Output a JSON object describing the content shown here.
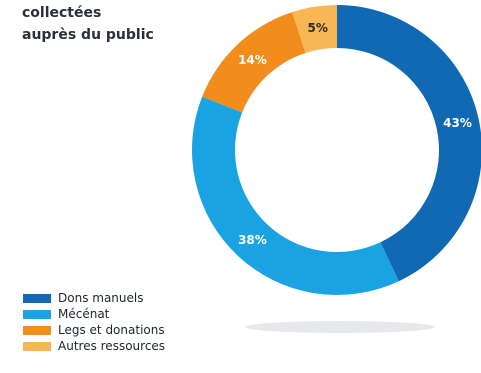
{
  "header": {
    "title_lines": [
      "collectées",
      "auprès du public"
    ]
  },
  "chart_data": {
    "type": "pie",
    "title": "",
    "categories": [
      "Dons manuels",
      "Mécénat",
      "Legs et donations",
      "Autres ressources"
    ],
    "values": [
      43,
      38,
      14,
      5
    ],
    "labels": [
      "43%",
      "38%",
      "14%",
      "5%"
    ],
    "colors": [
      "#1169b3",
      "#1aa3e3",
      "#f28c1c",
      "#f8b654"
    ],
    "legend_position": "bottom-left",
    "style": "donut"
  }
}
